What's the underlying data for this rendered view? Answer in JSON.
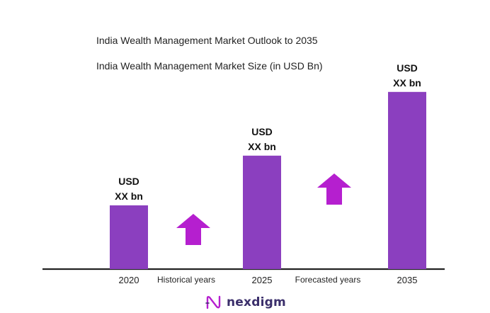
{
  "title": "India Wealth Management Market Outlook to 2035",
  "subtitle": "India Wealth Management Market Size (in USD Bn)",
  "brand": "nexdigm",
  "colors": {
    "bar": "#8b3fbf",
    "arrow": "#b51fcf",
    "axis": "#222222"
  },
  "chart_data": {
    "type": "bar",
    "title": "India Wealth Management Market Outlook to 2035",
    "subtitle": "India Wealth Management Market Size (in USD Bn)",
    "categories": [
      "2020",
      "2025",
      "2035"
    ],
    "values": [
      1.0,
      1.78,
      2.78
    ],
    "relative_scale_note": "",
    "data_labels": [
      [
        "USD",
        "XX bn"
      ],
      [
        "USD",
        "XX bn"
      ],
      [
        "USD",
        "XX bn"
      ]
    ],
    "annotations": [
      {
        "label": "Historical years",
        "icon": "up-arrow-icon"
      },
      {
        "label": "Forecasted years",
        "icon": "up-arrow-icon"
      }
    ],
    "grid": false,
    "legend": "none"
  }
}
